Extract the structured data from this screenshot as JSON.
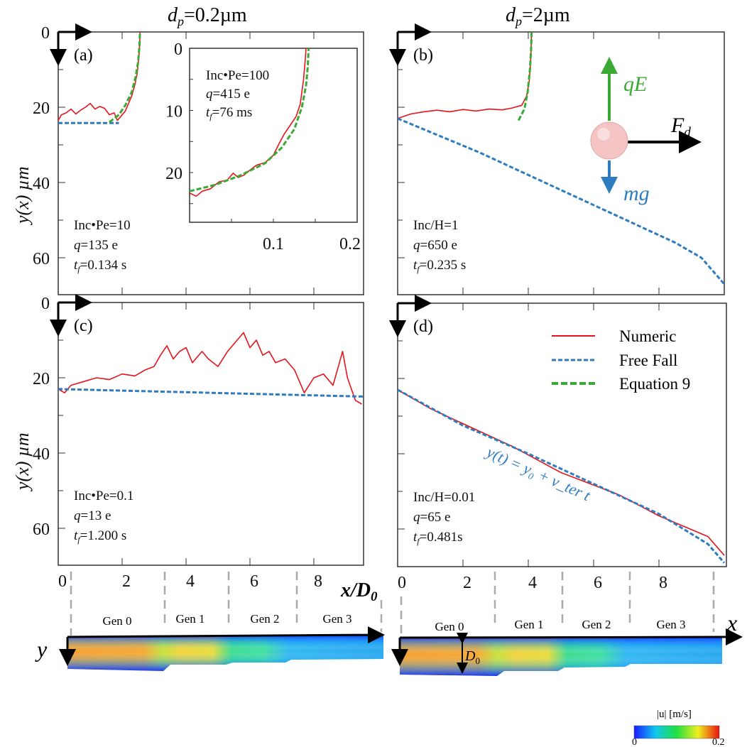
{
  "titles": {
    "left": {
      "var": "d",
      "sub": "p",
      "rest": "=0.2µm"
    },
    "right": {
      "var": "d",
      "sub": "p",
      "rest": "=2µm"
    }
  },
  "axes": {
    "ylabel": "y(x) µm",
    "xlabel_main": "x/D",
    "xlabel_sub": "0",
    "y_ticks": [
      "0",
      "20",
      "40",
      "60"
    ],
    "x_ticks": [
      "0",
      "2",
      "4",
      "6",
      "8"
    ],
    "inset_y_ticks": [
      "0",
      "10",
      "20"
    ],
    "inset_x_ticks": [
      "0.1",
      "0.2"
    ]
  },
  "colors": {
    "numeric": "#e8141b",
    "free_fall": "#2e7cc0",
    "equation9": "#3aaa35"
  },
  "legend": [
    "Numeric",
    "Free Fall",
    "Equation 9"
  ],
  "panels": {
    "a": {
      "label": "(a)",
      "line1": "Inc•Pe=10",
      "q": "=135 e",
      "tf": "=0.134 s"
    },
    "inset": {
      "line1": "Inc•Pe=100",
      "q": "=415 e",
      "tf": "=76 ms"
    },
    "b": {
      "label": "(b)",
      "line1": "Inc/H=1",
      "q": "=650 e",
      "tf": "=0.235 s"
    },
    "c": {
      "label": "(c)",
      "line1": "Inc•Pe=0.1",
      "q": "=13 e",
      "tf": "=1.200 s"
    },
    "d": {
      "label": "(d)",
      "line1": "Inc/H=0.01",
      "q": "=65 e",
      "tf": "=0.481s",
      "equation": "y(t) = y₀ + v_ter t"
    }
  },
  "forces": {
    "qE": "qE",
    "Fd": "F",
    "Fd_sub": "d",
    "mg": "mg"
  },
  "diagram": {
    "gens": [
      "Gen 0",
      "Gen 1",
      "Gen 2",
      "Gen 3"
    ],
    "x_axis": "x",
    "y_axis": "y",
    "D0": "D",
    "D0_sub": "0",
    "colorbar_label": "|u| [m/s]",
    "colorbar_min": "0",
    "colorbar_max": "0.2"
  },
  "chart_data": [
    {
      "type": "line",
      "panel": "a",
      "xlabel": "x/D0",
      "ylabel": "y(x) µm",
      "xlim": [
        0,
        9.55
      ],
      "ylim": [
        70,
        0
      ],
      "series": [
        {
          "name": "Numeric",
          "points": [
            [
              0,
              23.5
            ],
            [
              0.1,
              22
            ],
            [
              0.25,
              21.5
            ],
            [
              0.4,
              20.5
            ],
            [
              0.55,
              21.8
            ],
            [
              0.7,
              20.8
            ],
            [
              0.85,
              20
            ],
            [
              1.0,
              19
            ],
            [
              1.15,
              20.5
            ],
            [
              1.3,
              19.8
            ],
            [
              1.45,
              20.3
            ],
            [
              1.6,
              22
            ],
            [
              1.75,
              21.5
            ],
            [
              1.85,
              23.5
            ],
            [
              1.95,
              22.5
            ],
            [
              2.1,
              21
            ],
            [
              2.2,
              19
            ],
            [
              2.3,
              17
            ],
            [
              2.4,
              14
            ],
            [
              2.47,
              11
            ],
            [
              2.52,
              7
            ],
            [
              2.55,
              3
            ],
            [
              2.56,
              0
            ]
          ]
        },
        {
          "name": "Free Fall",
          "points": [
            [
              0,
              24.2
            ],
            [
              1.9,
              24.2
            ]
          ]
        },
        {
          "name": "Equation 9",
          "points": [
            [
              1.6,
              24
            ],
            [
              1.9,
              22
            ],
            [
              2.1,
              19.5
            ],
            [
              2.3,
              16
            ],
            [
              2.42,
              12
            ],
            [
              2.5,
              8
            ],
            [
              2.54,
              4
            ],
            [
              2.56,
              0
            ]
          ]
        }
      ]
    },
    {
      "type": "line",
      "panel": "inset",
      "xlim": [
        0,
        0.2
      ],
      "ylim": [
        28,
        0
      ],
      "series": [
        {
          "name": "Numeric",
          "points": [
            [
              0,
              23.3
            ],
            [
              0.008,
              23.8
            ],
            [
              0.015,
              23
            ],
            [
              0.025,
              22.6
            ],
            [
              0.035,
              21.5
            ],
            [
              0.045,
              21.2
            ],
            [
              0.052,
              20.1
            ],
            [
              0.058,
              20.8
            ],
            [
              0.065,
              20.4
            ],
            [
              0.072,
              19.6
            ],
            [
              0.08,
              18.8
            ],
            [
              0.09,
              18.4
            ],
            [
              0.1,
              17.2
            ],
            [
              0.107,
              15.3
            ],
            [
              0.113,
              13.8
            ],
            [
              0.12,
              12.4
            ],
            [
              0.127,
              11
            ],
            [
              0.132,
              9
            ],
            [
              0.136,
              5
            ],
            [
              0.138,
              2
            ],
            [
              0.139,
              0
            ]
          ]
        },
        {
          "name": "Equation 9",
          "points": [
            [
              0,
              23
            ],
            [
              0.03,
              22
            ],
            [
              0.06,
              20.5
            ],
            [
              0.09,
              18.5
            ],
            [
              0.11,
              16
            ],
            [
              0.125,
              13
            ],
            [
              0.134,
              9.5
            ],
            [
              0.139,
              6
            ],
            [
              0.141,
              3
            ],
            [
              0.142,
              0
            ]
          ]
        }
      ]
    },
    {
      "type": "line",
      "panel": "b",
      "xlim": [
        0,
        10
      ],
      "ylim": [
        70,
        0
      ],
      "series": [
        {
          "name": "Numeric",
          "points": [
            [
              0,
              23
            ],
            [
              0.4,
              21.8
            ],
            [
              0.8,
              21.2
            ],
            [
              1.2,
              20.8
            ],
            [
              1.6,
              21.2
            ],
            [
              2.0,
              20.6
            ],
            [
              2.4,
              21
            ],
            [
              2.8,
              20.5
            ],
            [
              3.2,
              20.7
            ],
            [
              3.5,
              20.2
            ],
            [
              3.8,
              19.5
            ],
            [
              3.95,
              17
            ],
            [
              4.03,
              13
            ],
            [
              4.07,
              8
            ],
            [
              4.09,
              3
            ],
            [
              4.1,
              0
            ]
          ]
        },
        {
          "name": "Free Fall",
          "points": [
            [
              0,
              23
            ],
            [
              2.5,
              32
            ],
            [
              4.5,
              40
            ],
            [
              6.5,
              48
            ],
            [
              8.5,
              56
            ],
            [
              9.3,
              60
            ],
            [
              10,
              67
            ]
          ]
        },
        {
          "name": "Equation 9",
          "points": [
            [
              3.7,
              23.5
            ],
            [
              3.88,
              20.5
            ],
            [
              3.98,
              16
            ],
            [
              4.05,
              10
            ],
            [
              4.09,
              4
            ],
            [
              4.1,
              0
            ]
          ]
        }
      ]
    },
    {
      "type": "line",
      "panel": "c",
      "xlim": [
        0,
        9.55
      ],
      "ylim": [
        70,
        0
      ],
      "series": [
        {
          "name": "Numeric",
          "points": [
            [
              0,
              23
            ],
            [
              0.2,
              24
            ],
            [
              0.4,
              22
            ],
            [
              0.8,
              21
            ],
            [
              1.2,
              20
            ],
            [
              1.6,
              20.5
            ],
            [
              2.0,
              19
            ],
            [
              2.4,
              19.5
            ],
            [
              2.7,
              18
            ],
            [
              3.0,
              17
            ],
            [
              3.2,
              14
            ],
            [
              3.4,
              11.5
            ],
            [
              3.6,
              15
            ],
            [
              3.8,
              13
            ],
            [
              4.0,
              12
            ],
            [
              4.2,
              16
            ],
            [
              4.5,
              13
            ],
            [
              4.7,
              15
            ],
            [
              5.0,
              17
            ],
            [
              5.3,
              13
            ],
            [
              5.6,
              10
            ],
            [
              5.8,
              8
            ],
            [
              6.0,
              12
            ],
            [
              6.2,
              10
            ],
            [
              6.4,
              14
            ],
            [
              6.6,
              13
            ],
            [
              6.8,
              16
            ],
            [
              7.1,
              15
            ],
            [
              7.4,
              18
            ],
            [
              7.7,
              24
            ],
            [
              8.0,
              20
            ],
            [
              8.3,
              19
            ],
            [
              8.6,
              22
            ],
            [
              8.8,
              16
            ],
            [
              8.9,
              13
            ],
            [
              9.05,
              20
            ],
            [
              9.3,
              26
            ],
            [
              9.5,
              27
            ]
          ]
        },
        {
          "name": "Free Fall",
          "points": [
            [
              0,
              23
            ],
            [
              9.55,
              25
            ]
          ]
        }
      ]
    },
    {
      "type": "line",
      "panel": "d",
      "xlim": [
        0,
        10
      ],
      "ylim": [
        70,
        0
      ],
      "series": [
        {
          "name": "Numeric",
          "points": [
            [
              0,
              23
            ],
            [
              1,
              28
            ],
            [
              2,
              32
            ],
            [
              3.5,
              38
            ],
            [
              5,
              45
            ],
            [
              6.8,
              51
            ],
            [
              8,
              56.5
            ],
            [
              9.5,
              62
            ],
            [
              10,
              67
            ]
          ]
        },
        {
          "name": "Free Fall",
          "points": [
            [
              0,
              23
            ],
            [
              2,
              32.5
            ],
            [
              4,
              40
            ],
            [
              6,
              48
            ],
            [
              8,
              56
            ],
            [
              9.5,
              64
            ],
            [
              10,
              69
            ]
          ]
        }
      ]
    }
  ]
}
